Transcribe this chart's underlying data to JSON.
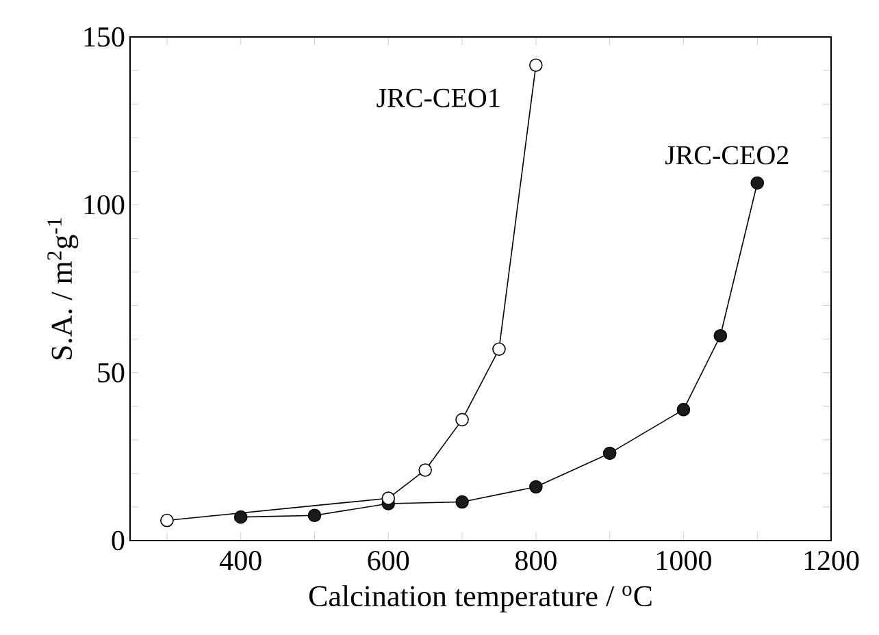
{
  "chart_data": {
    "type": "line",
    "xlabel": "Calcination temperature / $^{o}$C",
    "ylabel": "S.A. / m$^{2}$g$^{-1}$",
    "xlim": [
      250,
      1200
    ],
    "ylim": [
      0,
      150
    ],
    "xticks": [
      {
        "value": 300,
        "label": null
      },
      400,
      {
        "value": 500,
        "label": null
      },
      600,
      {
        "value": 700,
        "label": null
      },
      800,
      {
        "value": 900,
        "label": null
      },
      1000,
      {
        "value": 1100,
        "label": null
      },
      1200
    ],
    "yticks": [
      0,
      {
        "value": 10,
        "label": null
      },
      {
        "value": 20,
        "label": null
      },
      {
        "value": 30,
        "label": null
      },
      {
        "value": 40,
        "label": null
      },
      50,
      {
        "value": 60,
        "label": null
      },
      {
        "value": 70,
        "label": null
      },
      {
        "value": 80,
        "label": null
      },
      {
        "value": 90,
        "label": null
      },
      100,
      {
        "value": 110,
        "label": null
      },
      {
        "value": 120,
        "label": null
      },
      {
        "value": 130,
        "label": null
      },
      {
        "value": 140,
        "label": null
      },
      150
    ],
    "marker": "circle",
    "legend": false,
    "series": [
      {
        "name": "JRC-CEO1",
        "color": "#ffffff",
        "x": [
          300,
          600,
          650,
          700,
          750,
          800
        ],
        "values": [
          6,
          12.6,
          21,
          36,
          57,
          141.6
        ]
      },
      {
        "name": "JRC-CEO2",
        "color": "#1a1a1a",
        "x": [
          400,
          500,
          600,
          700,
          800,
          900,
          1000,
          1050,
          1100
        ],
        "values": [
          7,
          7.5,
          11,
          11.5,
          16,
          26,
          39,
          61,
          106.5
        ]
      }
    ]
  }
}
